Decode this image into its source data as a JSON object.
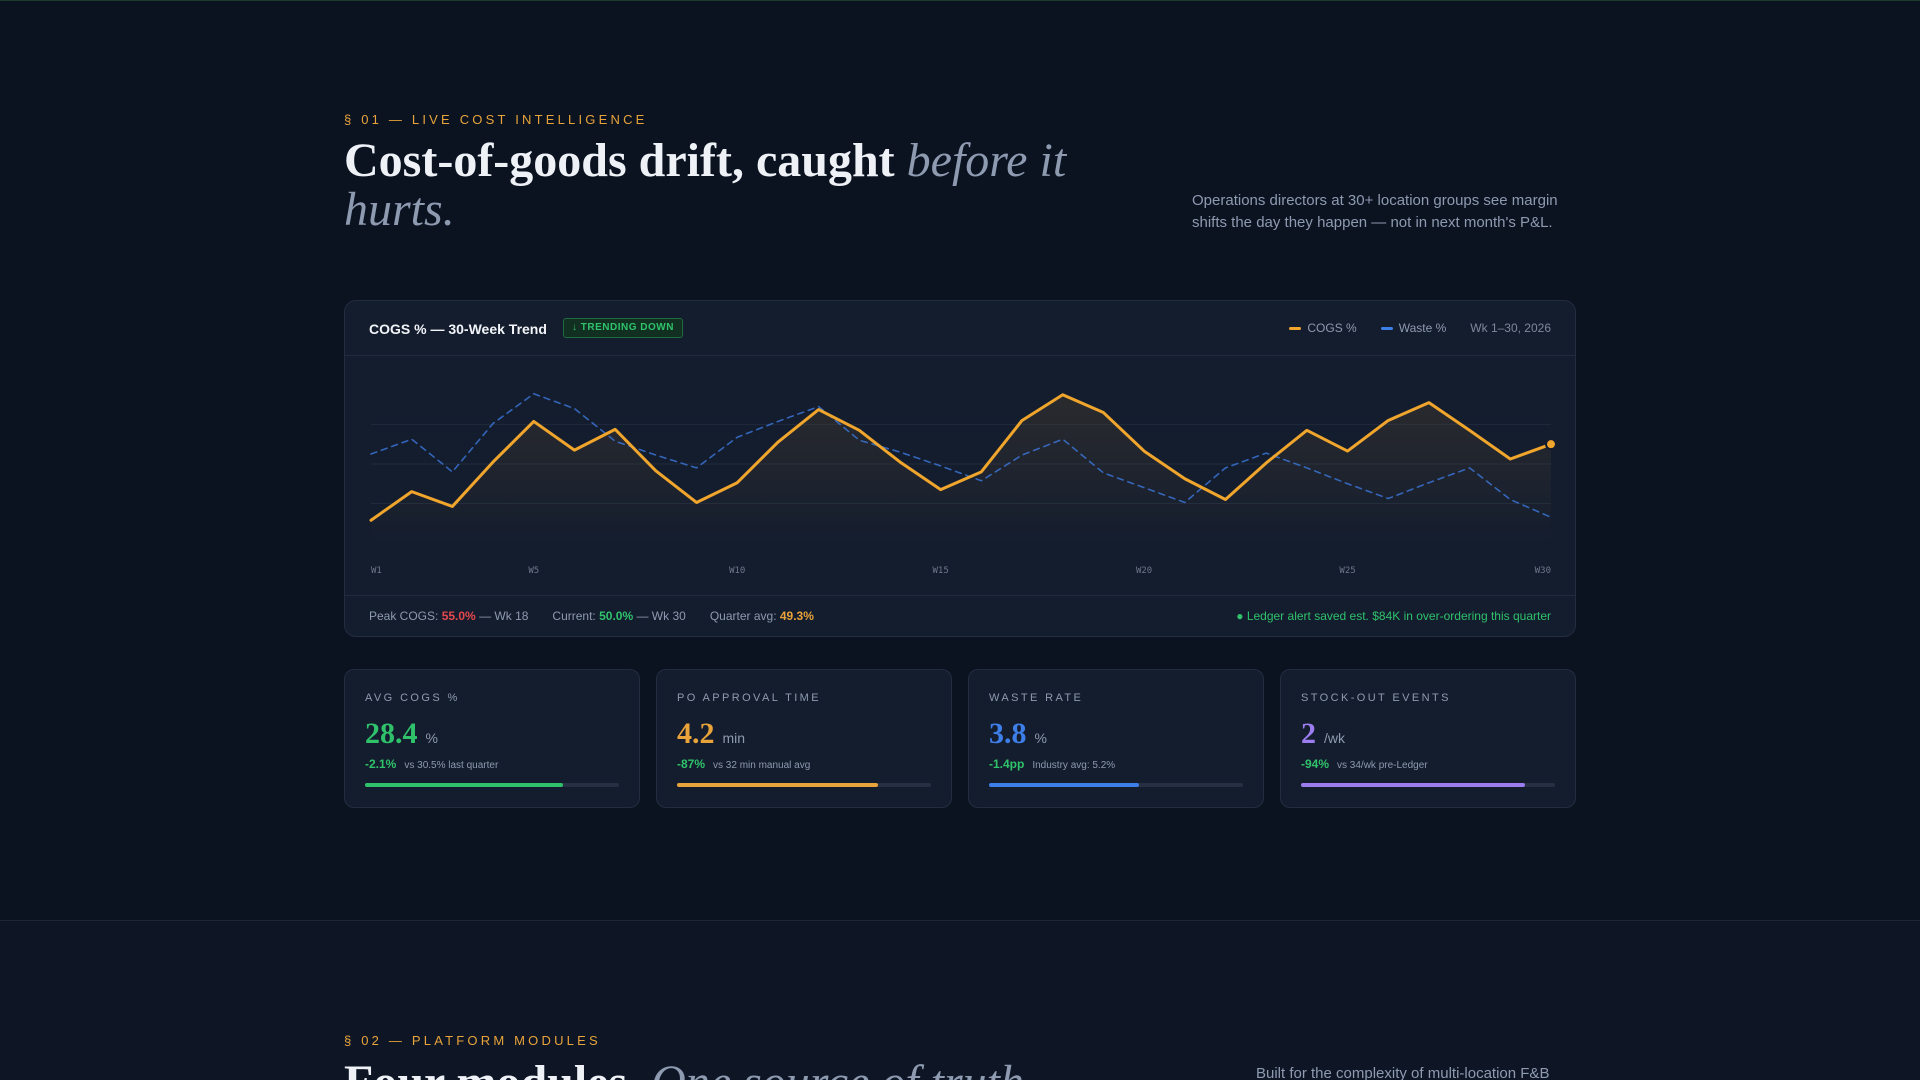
{
  "section1": {
    "eyebrow": "§ 01 — LIVE COST INTELLIGENCE",
    "headline_bold": "Cost-of-goods drift, caught ",
    "headline_italic": "before it hurts.",
    "lede": "Operations directors at 30+ location groups see margin shifts the day they happen — not in next month's P&L."
  },
  "chart_card": {
    "title": "COGS % — 30-Week Trend",
    "badge": "↓ TRENDING DOWN",
    "legend": [
      {
        "label": "COGS %",
        "color": "#f0a52c"
      },
      {
        "label": "Waste %",
        "color": "#3d7ee8"
      }
    ],
    "range_label": "Wk 1–30, 2026",
    "footer": {
      "peak_label": "Peak COGS: ",
      "peak_value": "55.0%",
      "peak_suffix": " — Wk 18",
      "current_label": "Current: ",
      "current_value": "50.0%",
      "current_suffix": " — Wk 30",
      "avg_label": "Quarter avg: ",
      "avg_value": "49.3%",
      "alert": "● Ledger alert saved est. $84K in over-ordering this quarter"
    }
  },
  "chart_data": {
    "type": "line",
    "x": [
      1,
      2,
      3,
      4,
      5,
      6,
      7,
      8,
      9,
      10,
      11,
      12,
      13,
      14,
      15,
      16,
      17,
      18,
      19,
      20,
      21,
      22,
      23,
      24,
      25,
      26,
      27,
      28,
      29,
      30
    ],
    "tick_labels": [
      "W1",
      "W5",
      "W10",
      "W15",
      "W20",
      "W25",
      "W30"
    ],
    "tick_positions": [
      1,
      5,
      10,
      15,
      20,
      25,
      30
    ],
    "series": [
      {
        "name": "COGS %",
        "color": "#f0a52c",
        "style": "solid",
        "values": [
          42.3,
          45.2,
          43.7,
          48.2,
          52.3,
          49.4,
          51.5,
          47.3,
          44.1,
          46.1,
          50.2,
          53.5,
          51.4,
          48.2,
          45.4,
          47.2,
          52.4,
          55.0,
          53.2,
          49.3,
          46.5,
          44.4,
          48.1,
          51.4,
          49.3,
          52.4,
          54.2,
          51.4,
          48.5,
          50.0
        ]
      },
      {
        "name": "Waste %",
        "color": "#3d7ee8",
        "style": "dashed",
        "values": [
          49.0,
          50.5,
          47.2,
          52.1,
          55.1,
          53.6,
          50.3,
          48.9,
          47.6,
          50.7,
          52.3,
          53.8,
          50.4,
          49.2,
          47.8,
          46.3,
          48.9,
          50.5,
          47.1,
          45.6,
          44.1,
          47.6,
          49.1,
          47.6,
          46.0,
          44.5,
          46.1,
          47.6,
          44.4,
          42.6
        ]
      }
    ],
    "ylim": [
      40,
      57
    ],
    "grid": true,
    "last_point_marker": true
  },
  "kpis": [
    {
      "label": "AVG COGS %",
      "value": "28.4",
      "unit": "%",
      "delta": "-2.1%",
      "context": "vs 30.5% last quarter",
      "color": "#2fc26b",
      "progress": 0.78
    },
    {
      "label": "PO APPROVAL TIME",
      "value": "4.2",
      "unit": "min",
      "delta": "-87%",
      "context": "vs 32 min manual avg",
      "color": "#e8a33a",
      "progress": 0.79
    },
    {
      "label": "WASTE RATE",
      "value": "3.8",
      "unit": "%",
      "delta": "-1.4pp",
      "context": "Industry avg: 5.2%",
      "color": "#3d7ee8",
      "progress": 0.59
    },
    {
      "label": "STOCK-OUT EVENTS",
      "value": "2",
      "unit": "/wk",
      "delta": "-94%",
      "context": "vs 34/wk pre-Ledger",
      "color": "#9b7df0",
      "progress": 0.88
    }
  ],
  "section2": {
    "eyebrow": "§ 02 — PLATFORM MODULES",
    "headline_bold": "Four modules. ",
    "headline_italic": "One source of truth.",
    "lede": "Built for the complexity of multi-location F&B"
  }
}
